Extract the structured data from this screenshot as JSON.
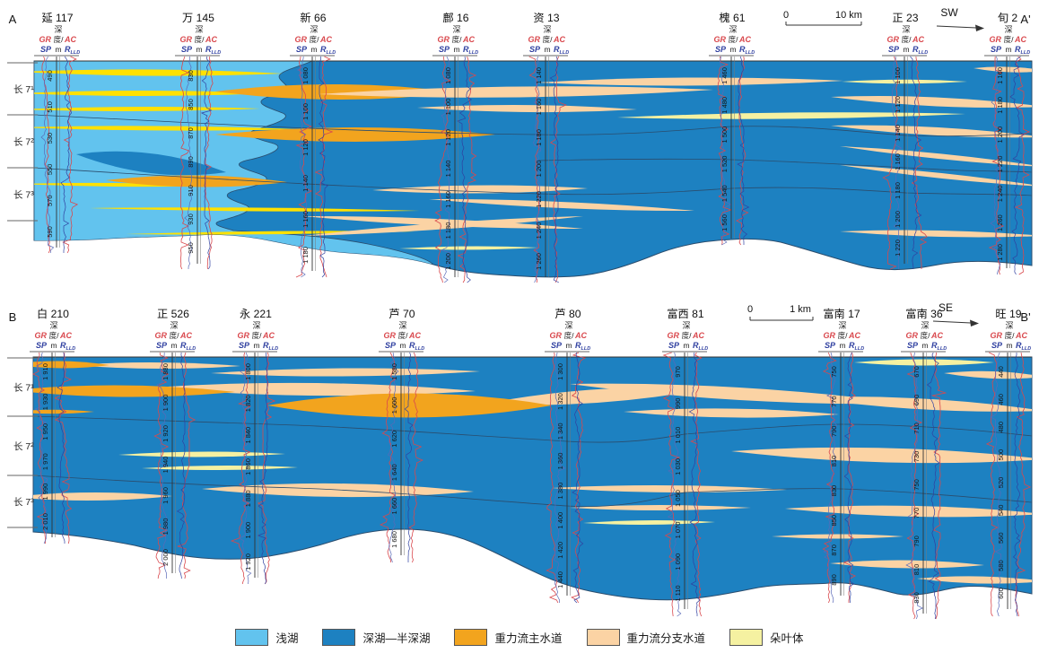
{
  "sections": [
    {
      "id": "A",
      "start_label": "A",
      "end_label": "A'",
      "direction_label": "SW",
      "scale_bar": {
        "zero": "0",
        "label": "10 km"
      },
      "zones": [
        "长 7¹",
        "长 7²",
        "长 7³"
      ],
      "wells": [
        {
          "name": "延 117",
          "depth_labels": [
            "490",
            "510",
            "530",
            "550",
            "570",
            "590"
          ]
        },
        {
          "name": "万 145",
          "depth_labels": [
            "830",
            "850",
            "870",
            "890",
            "910",
            "930",
            "950"
          ]
        },
        {
          "name": "新 66",
          "depth_labels": [
            "1 080",
            "1 100",
            "1 120",
            "1 140",
            "1 160",
            "1 180"
          ]
        },
        {
          "name": "鄜 16",
          "depth_labels": [
            "1 080",
            "1 100",
            "1 120",
            "1 140",
            "1 160",
            "1 180",
            "1 200"
          ]
        },
        {
          "name": "资 13",
          "depth_labels": [
            "1 140",
            "1 160",
            "1 180",
            "1 200",
            "1 220",
            "1 240",
            "1 260"
          ]
        },
        {
          "name": "槐 61",
          "depth_labels": [
            "1 460",
            "1 480",
            "1 500",
            "1 520",
            "1 540",
            "1 560"
          ]
        },
        {
          "name": "正 23",
          "depth_labels": [
            "1 100",
            "1 120",
            "1 140",
            "1 160",
            "1 180",
            "1 200",
            "1 220"
          ]
        },
        {
          "name": "旬 2",
          "depth_labels": [
            "1 160",
            "1 180",
            "1 200",
            "1 220",
            "1 240",
            "1 260",
            "1 280"
          ]
        }
      ]
    },
    {
      "id": "B",
      "start_label": "B",
      "end_label": "B'",
      "direction_label": "SE",
      "scale_bar": {
        "zero": "0",
        "label": "1 km"
      },
      "zones": [
        "长 7¹",
        "长 7²",
        "长 7³"
      ],
      "wells": [
        {
          "name": "白 210",
          "depth_labels": [
            "1 910",
            "1 930",
            "1 950",
            "1 970",
            "1 990",
            "2 010"
          ]
        },
        {
          "name": "正 526",
          "depth_labels": [
            "1 880",
            "1 900",
            "1 920",
            "1 940",
            "1 960",
            "1 980",
            "2 000"
          ]
        },
        {
          "name": "永 221",
          "depth_labels": [
            "1 800",
            "1 820",
            "1 840",
            "1 860",
            "1 880",
            "1 900",
            "1 920"
          ]
        },
        {
          "name": "芦 70",
          "depth_labels": [
            "1 580",
            "1 600",
            "1 620",
            "1 640",
            "1 660",
            "1 680"
          ]
        },
        {
          "name": "芦 80",
          "depth_labels": [
            "1 300",
            "1 320",
            "1 340",
            "1 360",
            "1 380",
            "1 400",
            "1 420",
            "1 440"
          ]
        },
        {
          "name": "富西 81",
          "depth_labels": [
            "970",
            "990",
            "1 010",
            "1 030",
            "1 050",
            "1 070",
            "1 090",
            "1 110"
          ]
        },
        {
          "name": "富南 17",
          "depth_labels": [
            "750",
            "770",
            "790",
            "810",
            "830",
            "850",
            "870",
            "890"
          ]
        },
        {
          "name": "富南 36",
          "depth_labels": [
            "670",
            "690",
            "710",
            "730",
            "750",
            "770",
            "790",
            "810",
            "830"
          ]
        },
        {
          "name": "旺 19",
          "depth_labels": [
            "440",
            "460",
            "480",
            "500",
            "520",
            "540",
            "560",
            "580",
            "600"
          ]
        }
      ]
    }
  ],
  "log_header": {
    "depth_char": "深",
    "depth_char2": "度/",
    "depth_unit": "m",
    "curve_left_top": "GR",
    "curve_left_bottom": "SP",
    "curve_right_top": "AC",
    "curve_right_bottom": "R",
    "curve_right_bottom_sub": "LLD"
  },
  "legend": [
    {
      "label": "浅湖",
      "color": "#62c3ee"
    },
    {
      "label": "深湖—半深湖",
      "color": "#1d81c1"
    },
    {
      "label": "重力流主水道",
      "color": "#f2a41e"
    },
    {
      "label": "重力流分支水道",
      "color": "#fbd3a4"
    },
    {
      "label": "朵叶体",
      "color": "#f5f1a1"
    }
  ],
  "facies_colors": {
    "shallow_lake": "#62c3ee",
    "deep_lake": "#1d81c1",
    "main_channel": "#f2a41e",
    "distributary_channel": "#fbd3a4",
    "lobe": "#f5f1a1",
    "lobe_bright": "#ffe100",
    "log_curve_red": "#d9484d",
    "log_curve_blue": "#5a6ab8",
    "log_curve_darkblue": "#3040a0",
    "line_dark": "#333333",
    "correlation_line": "#2a4d6e"
  }
}
